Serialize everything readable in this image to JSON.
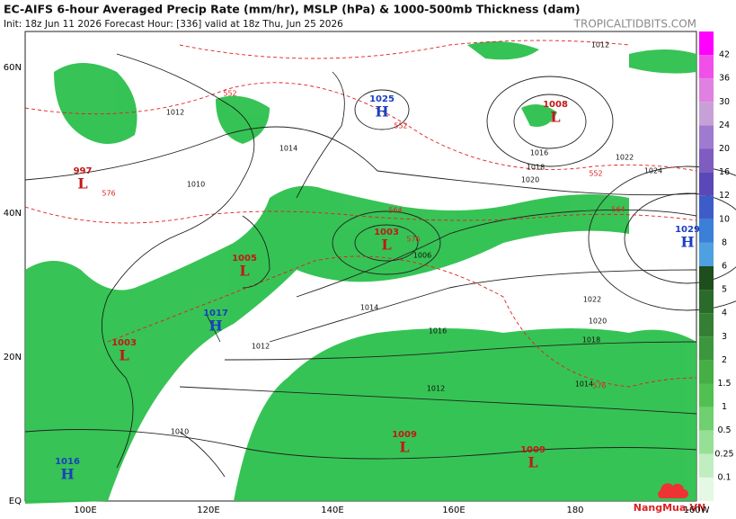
{
  "header": {
    "title": "EC-AIFS 6-hour Averaged Precip Rate (mm/hr), MSLP (hPa) & 1000-500mb Thickness (dam)",
    "subtitle": "Init: 18z Jun 11 2026   Forecast Hour: [336]   valid at 18z Thu, Jun 25 2026",
    "site": "TROPICALTIDBITS.COM"
  },
  "axes": {
    "lat": [
      "60N",
      "40N",
      "20N",
      "EQ"
    ],
    "lon": [
      "100E",
      "120E",
      "140E",
      "160E",
      "180",
      "160W"
    ]
  },
  "centers": [
    {
      "pressure": 1025,
      "symbol": "H"
    },
    {
      "pressure": 1008,
      "symbol": "L"
    },
    {
      "pressure": 1003,
      "symbol": "L"
    },
    {
      "pressure": 1029,
      "symbol": "H"
    },
    {
      "pressure": 1005,
      "symbol": "L"
    },
    {
      "pressure": 1017,
      "symbol": "H"
    },
    {
      "pressure": 1003,
      "symbol": "L"
    },
    {
      "pressure": 1009,
      "symbol": "L"
    },
    {
      "pressure": 1009,
      "symbol": "L"
    },
    {
      "pressure": 1016,
      "symbol": "H"
    },
    {
      "pressure": 997,
      "symbol": "L"
    }
  ],
  "isobar_labels": [
    "1012",
    "1016",
    "1018",
    "1020",
    "1022",
    "1024",
    "1014",
    "1010",
    "1012",
    "1016",
    "1018",
    "1020",
    "1022",
    "1014",
    "1012",
    "1010",
    "1006",
    "1014",
    "1012"
  ],
  "thickness_labels": [
    "552",
    "552",
    "564",
    "576",
    "576",
    "552",
    "564",
    "576"
  ],
  "colorbar": {
    "labels": [
      "42",
      "36",
      "30",
      "24",
      "20",
      "16",
      "12",
      "10",
      "8",
      "6",
      "5",
      "4",
      "3",
      "2",
      "1.5",
      "1",
      "0.5",
      "0.25",
      "0.1"
    ]
  },
  "watermark": "NangMua.VN"
}
